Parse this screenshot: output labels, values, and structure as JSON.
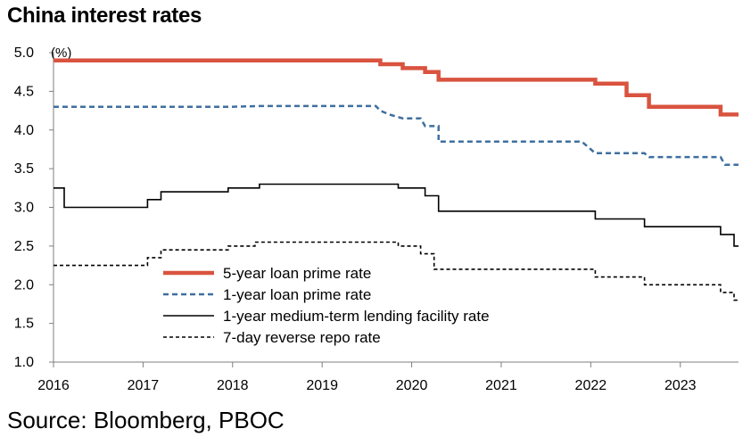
{
  "chart_data": {
    "type": "line",
    "title": "China interest rates",
    "ylabel": "(%)",
    "xlabel": "",
    "xlim": [
      2016.0,
      2023.65
    ],
    "ylim": [
      1.0,
      5.0
    ],
    "x_ticks": [
      2016,
      2017,
      2018,
      2019,
      2020,
      2021,
      2022,
      2023
    ],
    "y_ticks": [
      1.0,
      1.5,
      2.0,
      2.5,
      3.0,
      3.5,
      4.0,
      4.5,
      5.0
    ],
    "grid": false,
    "legend_position": "center-left",
    "source": "Source: Bloomberg, PBOC",
    "series": [
      {
        "name": "5-year loan prime rate",
        "color": "#d9533f",
        "style": "solid-thick",
        "points": [
          [
            2016.0,
            4.9
          ],
          [
            2019.65,
            4.9
          ],
          [
            2019.65,
            4.85
          ],
          [
            2019.9,
            4.85
          ],
          [
            2019.9,
            4.8
          ],
          [
            2020.15,
            4.8
          ],
          [
            2020.15,
            4.75
          ],
          [
            2020.3,
            4.75
          ],
          [
            2020.3,
            4.65
          ],
          [
            2022.05,
            4.65
          ],
          [
            2022.05,
            4.6
          ],
          [
            2022.4,
            4.6
          ],
          [
            2022.4,
            4.45
          ],
          [
            2022.65,
            4.45
          ],
          [
            2022.65,
            4.3
          ],
          [
            2023.45,
            4.3
          ],
          [
            2023.45,
            4.2
          ],
          [
            2023.65,
            4.2
          ]
        ]
      },
      {
        "name": "1-year loan prime rate",
        "color": "#3f6f9f",
        "style": "dashed",
        "points": [
          [
            2016.0,
            4.3
          ],
          [
            2018.0,
            4.3
          ],
          [
            2018.3,
            4.31
          ],
          [
            2019.6,
            4.31
          ],
          [
            2019.65,
            4.25
          ],
          [
            2019.75,
            4.2
          ],
          [
            2019.9,
            4.15
          ],
          [
            2020.1,
            4.15
          ],
          [
            2020.15,
            4.05
          ],
          [
            2020.3,
            4.05
          ],
          [
            2020.3,
            3.85
          ],
          [
            2021.9,
            3.85
          ],
          [
            2022.05,
            3.7
          ],
          [
            2022.6,
            3.7
          ],
          [
            2022.65,
            3.65
          ],
          [
            2023.45,
            3.65
          ],
          [
            2023.5,
            3.55
          ],
          [
            2023.65,
            3.55
          ]
        ]
      },
      {
        "name": "1-year medium-term lending facility rate",
        "color": "#000000",
        "style": "solid-thin",
        "points": [
          [
            2016.0,
            3.25
          ],
          [
            2016.12,
            3.25
          ],
          [
            2016.12,
            3.0
          ],
          [
            2017.05,
            3.0
          ],
          [
            2017.05,
            3.1
          ],
          [
            2017.2,
            3.1
          ],
          [
            2017.2,
            3.2
          ],
          [
            2017.95,
            3.2
          ],
          [
            2017.95,
            3.25
          ],
          [
            2018.3,
            3.25
          ],
          [
            2018.3,
            3.3
          ],
          [
            2019.85,
            3.3
          ],
          [
            2019.85,
            3.25
          ],
          [
            2020.15,
            3.25
          ],
          [
            2020.15,
            3.15
          ],
          [
            2020.3,
            3.15
          ],
          [
            2020.3,
            2.95
          ],
          [
            2022.05,
            2.95
          ],
          [
            2022.05,
            2.85
          ],
          [
            2022.6,
            2.85
          ],
          [
            2022.6,
            2.75
          ],
          [
            2023.45,
            2.75
          ],
          [
            2023.45,
            2.65
          ],
          [
            2023.6,
            2.65
          ],
          [
            2023.6,
            2.5
          ],
          [
            2023.65,
            2.5
          ]
        ]
      },
      {
        "name": "7-day reverse repo rate",
        "color": "#000000",
        "style": "dotted",
        "points": [
          [
            2016.0,
            2.25
          ],
          [
            2017.05,
            2.25
          ],
          [
            2017.05,
            2.35
          ],
          [
            2017.2,
            2.35
          ],
          [
            2017.2,
            2.45
          ],
          [
            2017.95,
            2.45
          ],
          [
            2017.95,
            2.5
          ],
          [
            2018.25,
            2.5
          ],
          [
            2018.25,
            2.55
          ],
          [
            2019.85,
            2.55
          ],
          [
            2019.85,
            2.5
          ],
          [
            2020.1,
            2.5
          ],
          [
            2020.1,
            2.4
          ],
          [
            2020.25,
            2.4
          ],
          [
            2020.25,
            2.2
          ],
          [
            2022.05,
            2.2
          ],
          [
            2022.05,
            2.1
          ],
          [
            2022.6,
            2.1
          ],
          [
            2022.6,
            2.0
          ],
          [
            2023.45,
            2.0
          ],
          [
            2023.45,
            1.9
          ],
          [
            2023.6,
            1.9
          ],
          [
            2023.6,
            1.8
          ],
          [
            2023.65,
            1.8
          ]
        ]
      }
    ]
  }
}
